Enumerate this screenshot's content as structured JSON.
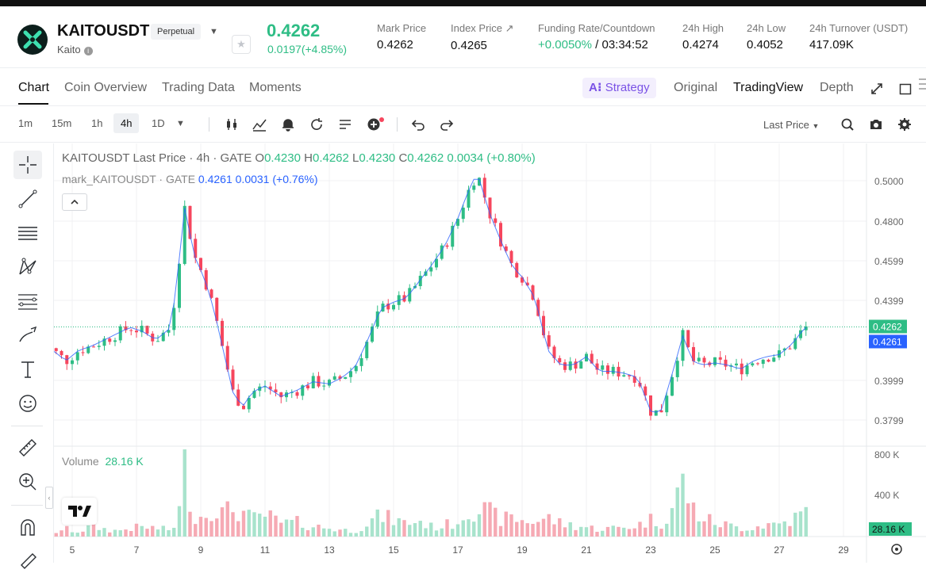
{
  "header": {
    "pair": "KAITOUSDT",
    "contract_type": "Perpetual",
    "token_name": "Kaito",
    "last_price": "0.4262",
    "change": "0.0197(+4.85%)",
    "stats": [
      {
        "label": "Mark Price",
        "value": "0.4262"
      },
      {
        "label": "Index Price ↗",
        "value": "0.4265"
      },
      {
        "label": "Funding Rate/Countdown",
        "value_rate": "+0.0050%",
        "value_count": " / 03:34:52"
      },
      {
        "label": "24h High",
        "value": "0.4274"
      },
      {
        "label": "24h Low",
        "value": "0.4052"
      },
      {
        "label": "24h Turnover (USDT)",
        "value": "417.09K"
      }
    ]
  },
  "tabs": {
    "left": [
      "Chart",
      "Coin Overview",
      "Trading Data",
      "Moments"
    ],
    "strategy": "Strategy",
    "right": [
      "Original",
      "TradingView",
      "Depth"
    ]
  },
  "toolbar": {
    "timeframes": [
      "1m",
      "15m",
      "1h",
      "4h",
      "1D"
    ],
    "selected": "4h",
    "price_type": "Last Price"
  },
  "legend": {
    "main_pair": "KAITOUSDT Last Price · 4h · GATE",
    "o_label": "O",
    "o": "0.4230",
    "h_label": "H",
    "h": "0.4262",
    "l_label": "L",
    "l": "0.4230",
    "c_label": "C",
    "c": "0.4262",
    "chg": "0.0034 (+0.80%)",
    "mark_name": "mark_KAITOUSDT · GATE",
    "mark_val": "0.4261",
    "mark_chg": "0.0031 (+0.76%)",
    "volume_label": "Volume",
    "volume_val": "28.16 K"
  },
  "colors": {
    "up": "#2ebd85",
    "down": "#f6465d",
    "mark": "#2962ff",
    "accent": "#7a52e6"
  },
  "chart_data": {
    "type": "candlestick",
    "price_axis_ticks": [
      "0.5000",
      "0.4800",
      "0.4599",
      "0.4399",
      "0.3999",
      "0.3799"
    ],
    "last_price_label": "0.4262",
    "mark_price_label": "0.4261",
    "volume_axis_ticks": [
      "800 K",
      "400 K"
    ],
    "volume_last_label": "28.16 K",
    "x_ticks": [
      "5",
      "7",
      "9",
      "11",
      "13",
      "15",
      "17",
      "19",
      "21",
      "23",
      "25",
      "27",
      "29"
    ],
    "ylim": [
      0.37,
      0.51
    ],
    "close_path": [
      [
        4.0,
        0.418
      ],
      [
        4.4,
        0.415
      ],
      [
        4.8,
        0.41
      ],
      [
        5.2,
        0.415
      ],
      [
        5.6,
        0.417
      ],
      [
        6.0,
        0.42
      ],
      [
        6.4,
        0.423
      ],
      [
        6.8,
        0.426
      ],
      [
        7.2,
        0.424
      ],
      [
        7.6,
        0.42
      ],
      [
        8.0,
        0.425
      ],
      [
        8.2,
        0.44
      ],
      [
        8.5,
        0.483
      ],
      [
        8.8,
        0.46
      ],
      [
        9.1,
        0.45
      ],
      [
        9.4,
        0.435
      ],
      [
        9.7,
        0.415
      ],
      [
        10.0,
        0.395
      ],
      [
        10.3,
        0.388
      ],
      [
        10.6,
        0.395
      ],
      [
        11.0,
        0.398
      ],
      [
        11.5,
        0.393
      ],
      [
        12.0,
        0.396
      ],
      [
        12.5,
        0.4
      ],
      [
        13.0,
        0.399
      ],
      [
        13.4,
        0.402
      ],
      [
        13.8,
        0.407
      ],
      [
        14.2,
        0.42
      ],
      [
        14.6,
        0.435
      ],
      [
        15.0,
        0.438
      ],
      [
        15.4,
        0.44
      ],
      [
        15.8,
        0.448
      ],
      [
        16.2,
        0.456
      ],
      [
        16.6,
        0.465
      ],
      [
        17.0,
        0.478
      ],
      [
        17.3,
        0.49
      ],
      [
        17.6,
        0.5
      ],
      [
        18.0,
        0.48
      ],
      [
        18.4,
        0.465
      ],
      [
        18.7,
        0.455
      ],
      [
        19.0,
        0.45
      ],
      [
        19.4,
        0.44
      ],
      [
        19.8,
        0.415
      ],
      [
        20.2,
        0.408
      ],
      [
        20.6,
        0.408
      ],
      [
        21.0,
        0.412
      ],
      [
        21.4,
        0.405
      ],
      [
        21.8,
        0.405
      ],
      [
        22.2,
        0.404
      ],
      [
        22.6,
        0.402
      ],
      [
        23.0,
        0.386
      ],
      [
        23.3,
        0.385
      ],
      [
        23.6,
        0.4
      ],
      [
        24.0,
        0.422
      ],
      [
        24.3,
        0.41
      ],
      [
        24.6,
        0.408
      ],
      [
        25.0,
        0.409
      ],
      [
        25.4,
        0.408
      ],
      [
        25.8,
        0.406
      ],
      [
        26.2,
        0.41
      ],
      [
        26.6,
        0.412
      ],
      [
        27.0,
        0.413
      ],
      [
        27.4,
        0.418
      ],
      [
        27.8,
        0.426
      ]
    ],
    "volume_path": [
      [
        4.0,
        60
      ],
      [
        4.4,
        40
      ],
      [
        4.8,
        80
      ],
      [
        5.2,
        50
      ],
      [
        5.6,
        110
      ],
      [
        6.0,
        80
      ],
      [
        6.4,
        60
      ],
      [
        6.8,
        90
      ],
      [
        7.2,
        100
      ],
      [
        7.6,
        90
      ],
      [
        8.0,
        70
      ],
      [
        8.3,
        160
      ],
      [
        8.5,
        840
      ],
      [
        8.8,
        200
      ],
      [
        9.1,
        220
      ],
      [
        9.4,
        340
      ],
      [
        9.7,
        240
      ],
      [
        10.0,
        300
      ],
      [
        10.3,
        260
      ],
      [
        10.6,
        180
      ],
      [
        11.0,
        230
      ],
      [
        11.5,
        140
      ],
      [
        12.0,
        150
      ],
      [
        12.5,
        110
      ],
      [
        13.0,
        90
      ],
      [
        13.4,
        70
      ],
      [
        13.8,
        60
      ],
      [
        14.2,
        150
      ],
      [
        14.6,
        220
      ],
      [
        15.0,
        180
      ],
      [
        15.4,
        140
      ],
      [
        15.8,
        170
      ],
      [
        16.2,
        100
      ],
      [
        16.6,
        120
      ],
      [
        17.0,
        160
      ],
      [
        17.3,
        300
      ],
      [
        17.6,
        300
      ],
      [
        18.0,
        250
      ],
      [
        18.4,
        180
      ],
      [
        18.7,
        200
      ],
      [
        19.0,
        170
      ],
      [
        19.4,
        160
      ],
      [
        19.8,
        200
      ],
      [
        20.2,
        140
      ],
      [
        20.6,
        120
      ],
      [
        21.0,
        100
      ],
      [
        21.4,
        80
      ],
      [
        21.8,
        90
      ],
      [
        22.2,
        100
      ],
      [
        22.6,
        120
      ],
      [
        23.0,
        180
      ],
      [
        23.3,
        140
      ],
      [
        23.6,
        250
      ],
      [
        24.0,
        580
      ],
      [
        24.3,
        300
      ],
      [
        24.6,
        200
      ],
      [
        25.0,
        150
      ],
      [
        25.4,
        120
      ],
      [
        25.8,
        90
      ],
      [
        26.2,
        100
      ],
      [
        26.6,
        130
      ],
      [
        27.0,
        140
      ],
      [
        27.4,
        180
      ],
      [
        27.8,
        260
      ]
    ]
  }
}
